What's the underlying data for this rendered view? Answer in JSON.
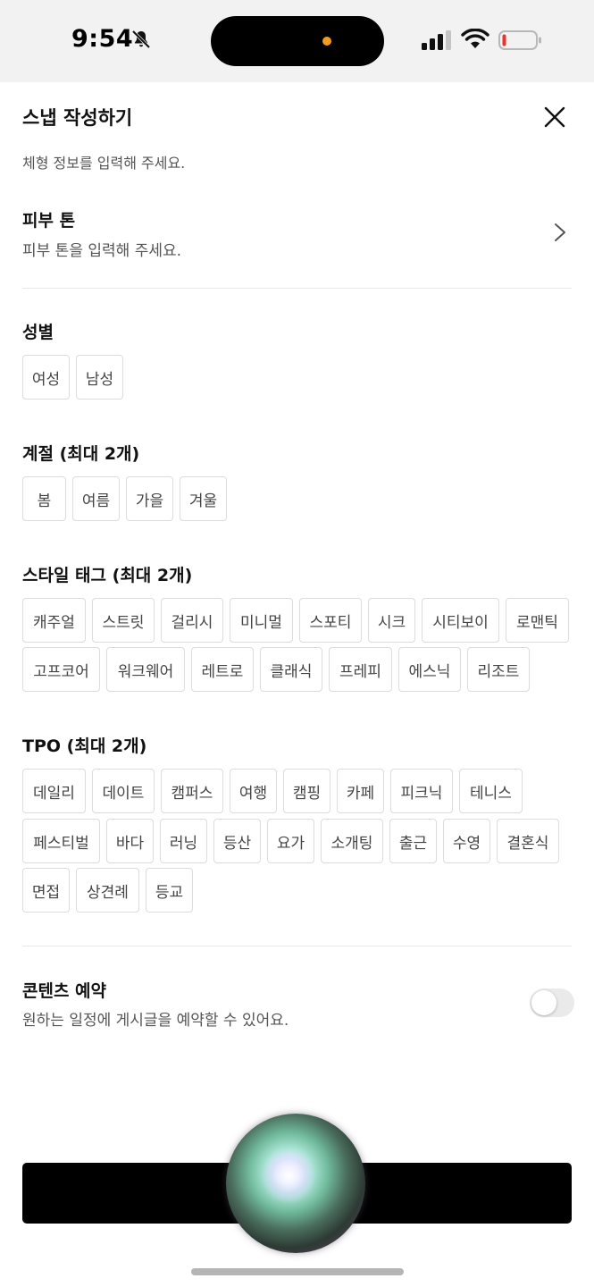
{
  "status_bar": {
    "time": "9:54"
  },
  "header": {
    "title": "스냅 작성하기"
  },
  "body_info": {
    "subtitle": "체형 정보를 입력해 주세요."
  },
  "skin_tone": {
    "title": "피부 톤",
    "subtitle": "피부 톤을 입력해 주세요."
  },
  "gender": {
    "title": "성별",
    "options": [
      "여성",
      "남성"
    ]
  },
  "season": {
    "title": "계절 (최대 2개)",
    "options": [
      "봄",
      "여름",
      "가을",
      "겨울"
    ]
  },
  "style": {
    "title": "스타일 태그 (최대 2개)",
    "options": [
      "캐주얼",
      "스트릿",
      "걸리시",
      "미니멀",
      "스포티",
      "시크",
      "시티보이",
      "로맨틱",
      "고프코어",
      "워크웨어",
      "레트로",
      "클래식",
      "프레피",
      "에스닉",
      "리조트"
    ]
  },
  "tpo": {
    "title": "TPO (최대 2개)",
    "options": [
      "데일리",
      "데이트",
      "캠퍼스",
      "여행",
      "캠핑",
      "카페",
      "피크닉",
      "테니스",
      "페스티벌",
      "바다",
      "러닝",
      "등산",
      "요가",
      "소개팅",
      "출근",
      "수영",
      "결혼식",
      "면접",
      "상견례",
      "등교"
    ]
  },
  "reservation": {
    "title": "콘텐츠 예약",
    "subtitle": "원하는 일정에 게시글을 예약할 수 있어요.",
    "enabled": false
  },
  "icons": [
    "bell-slash-icon",
    "cellular-signal-icon",
    "wifi-icon",
    "battery-icon",
    "close-icon",
    "chevron-right-icon",
    "siri-orb-icon"
  ],
  "colors": {
    "accent": "#000000",
    "chip_border": "#dcdcdc",
    "battery_low": "#e5352c",
    "island_dot": "#f39c1b"
  }
}
